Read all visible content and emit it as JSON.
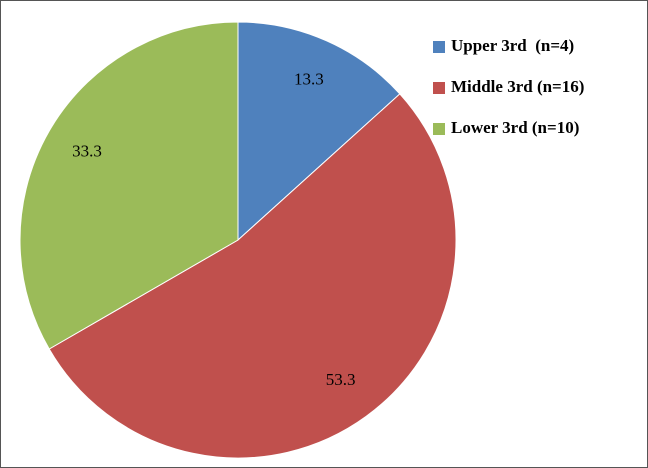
{
  "chart_data": {
    "type": "pie",
    "categories": [
      "Upper 3rd  (n=4)",
      "Middle 3rd (n=16)",
      "Lower 3rd (n=10)"
    ],
    "values": [
      13.3,
      53.3,
      33.3
    ],
    "colors": [
      "#4f81bd",
      "#c0504d",
      "#9bbb59"
    ],
    "legend": "right"
  }
}
